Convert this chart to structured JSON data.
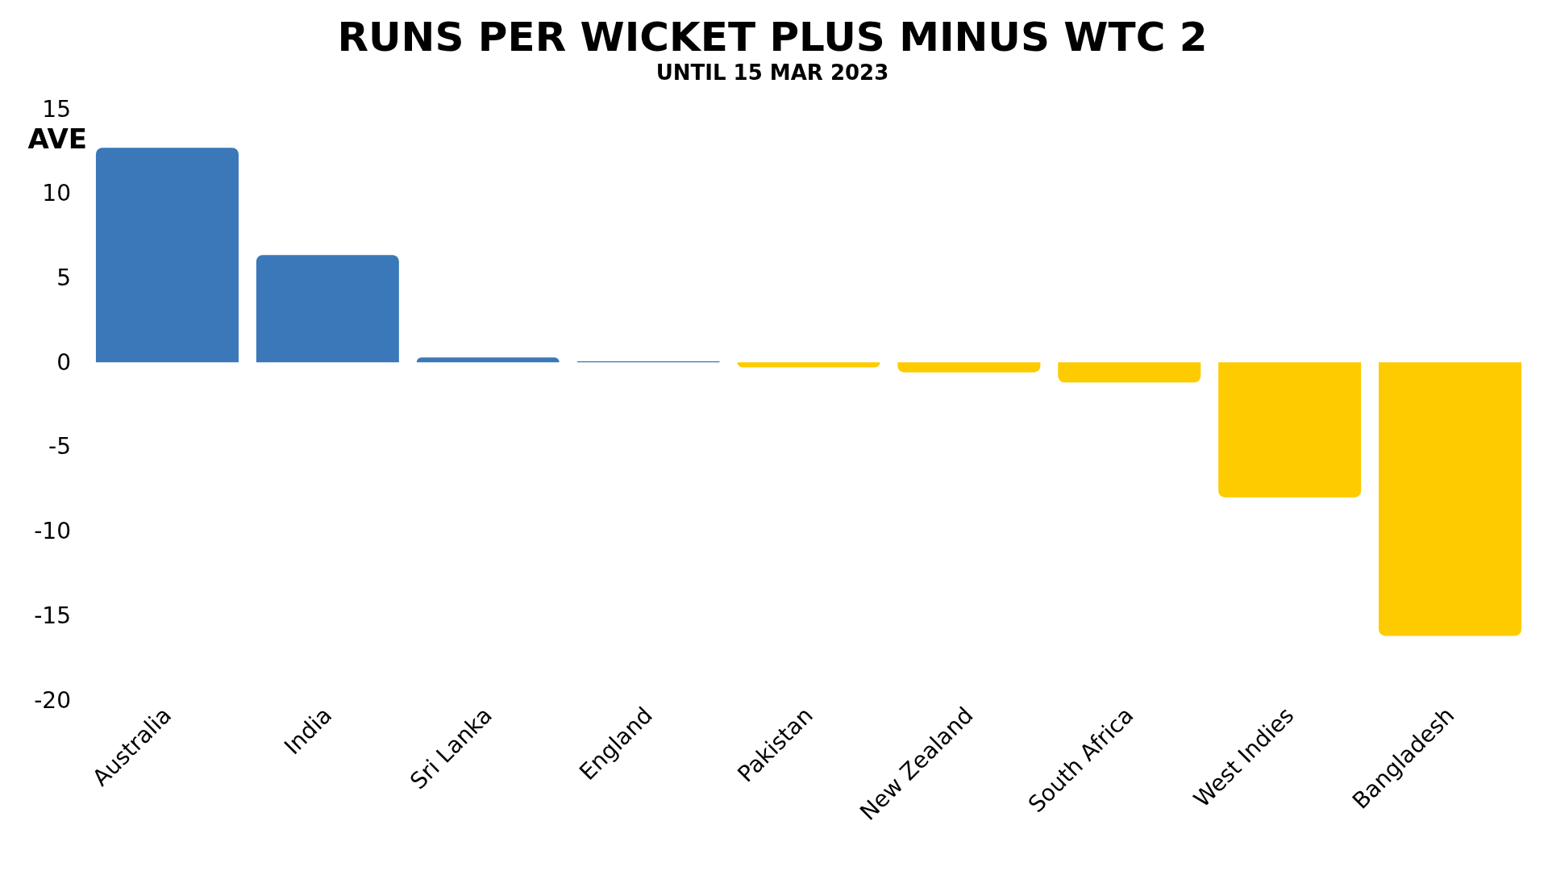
{
  "chart_data": {
    "type": "bar",
    "title": "RUNS PER WICKET PLUS MINUS WTC 2",
    "subtitle": "UNTIL 15 MAR 2023",
    "ylabel": "AVE",
    "categories": [
      "Australia",
      "India",
      "Sri Lanka",
      "England",
      "Pakistan",
      "New Zealand",
      "South Africa",
      "West Indies",
      "Bangladesh"
    ],
    "values": [
      12.7,
      6.35,
      0.28,
      0.05,
      -0.3,
      -0.6,
      -1.2,
      -8.0,
      -16.2
    ],
    "colors": [
      "#3a78b9",
      "#3a78b9",
      "#3a78b9",
      "#3a78b9",
      "#fecb00",
      "#fecb00",
      "#fecb00",
      "#fecb00",
      "#fecb00"
    ],
    "ylim": [
      -20,
      15
    ],
    "yticks": [
      -20,
      -15,
      -10,
      -5,
      0,
      5,
      10,
      15
    ],
    "grid": false
  }
}
